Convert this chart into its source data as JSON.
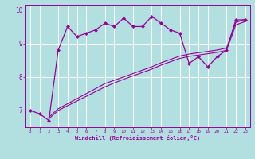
{
  "xlabel": "Windchill (Refroidissement éolien,°C)",
  "bg_color": "#b2e0e0",
  "grid_color": "#ffffff",
  "line_color": "#990099",
  "xlim": [
    -0.5,
    23.5
  ],
  "ylim": [
    6.5,
    10.15
  ],
  "x_hours": [
    0,
    1,
    2,
    3,
    4,
    5,
    6,
    7,
    8,
    9,
    10,
    11,
    12,
    13,
    14,
    15,
    16,
    17,
    18,
    19,
    20,
    21,
    22,
    23
  ],
  "y_main": [
    7.0,
    6.9,
    6.7,
    8.8,
    9.5,
    9.2,
    9.3,
    9.4,
    9.6,
    9.5,
    9.75,
    9.5,
    9.5,
    9.8,
    9.6,
    9.4,
    9.3,
    8.4,
    8.6,
    8.3,
    8.6,
    8.8,
    9.7,
    9.7
  ],
  "x_trend": [
    2,
    3,
    4,
    5,
    6,
    7,
    8,
    9,
    10,
    11,
    12,
    13,
    14,
    15,
    16,
    17,
    18,
    19,
    20,
    21,
    22,
    23
  ],
  "y_trend1": [
    6.8,
    7.05,
    7.2,
    7.35,
    7.5,
    7.65,
    7.8,
    7.9,
    8.0,
    8.1,
    8.2,
    8.3,
    8.42,
    8.52,
    8.62,
    8.68,
    8.72,
    8.76,
    8.8,
    8.86,
    9.62,
    9.72
  ],
  "y_trend2": [
    6.75,
    7.0,
    7.14,
    7.28,
    7.42,
    7.56,
    7.7,
    7.82,
    7.93,
    8.03,
    8.13,
    8.23,
    8.35,
    8.45,
    8.55,
    8.61,
    8.65,
    8.69,
    8.73,
    8.79,
    9.55,
    9.65
  ],
  "yticks": [
    7,
    8,
    9,
    10
  ],
  "xticks": [
    0,
    1,
    2,
    3,
    4,
    5,
    6,
    7,
    8,
    9,
    10,
    11,
    12,
    13,
    14,
    15,
    16,
    17,
    18,
    19,
    20,
    21,
    22,
    23
  ]
}
